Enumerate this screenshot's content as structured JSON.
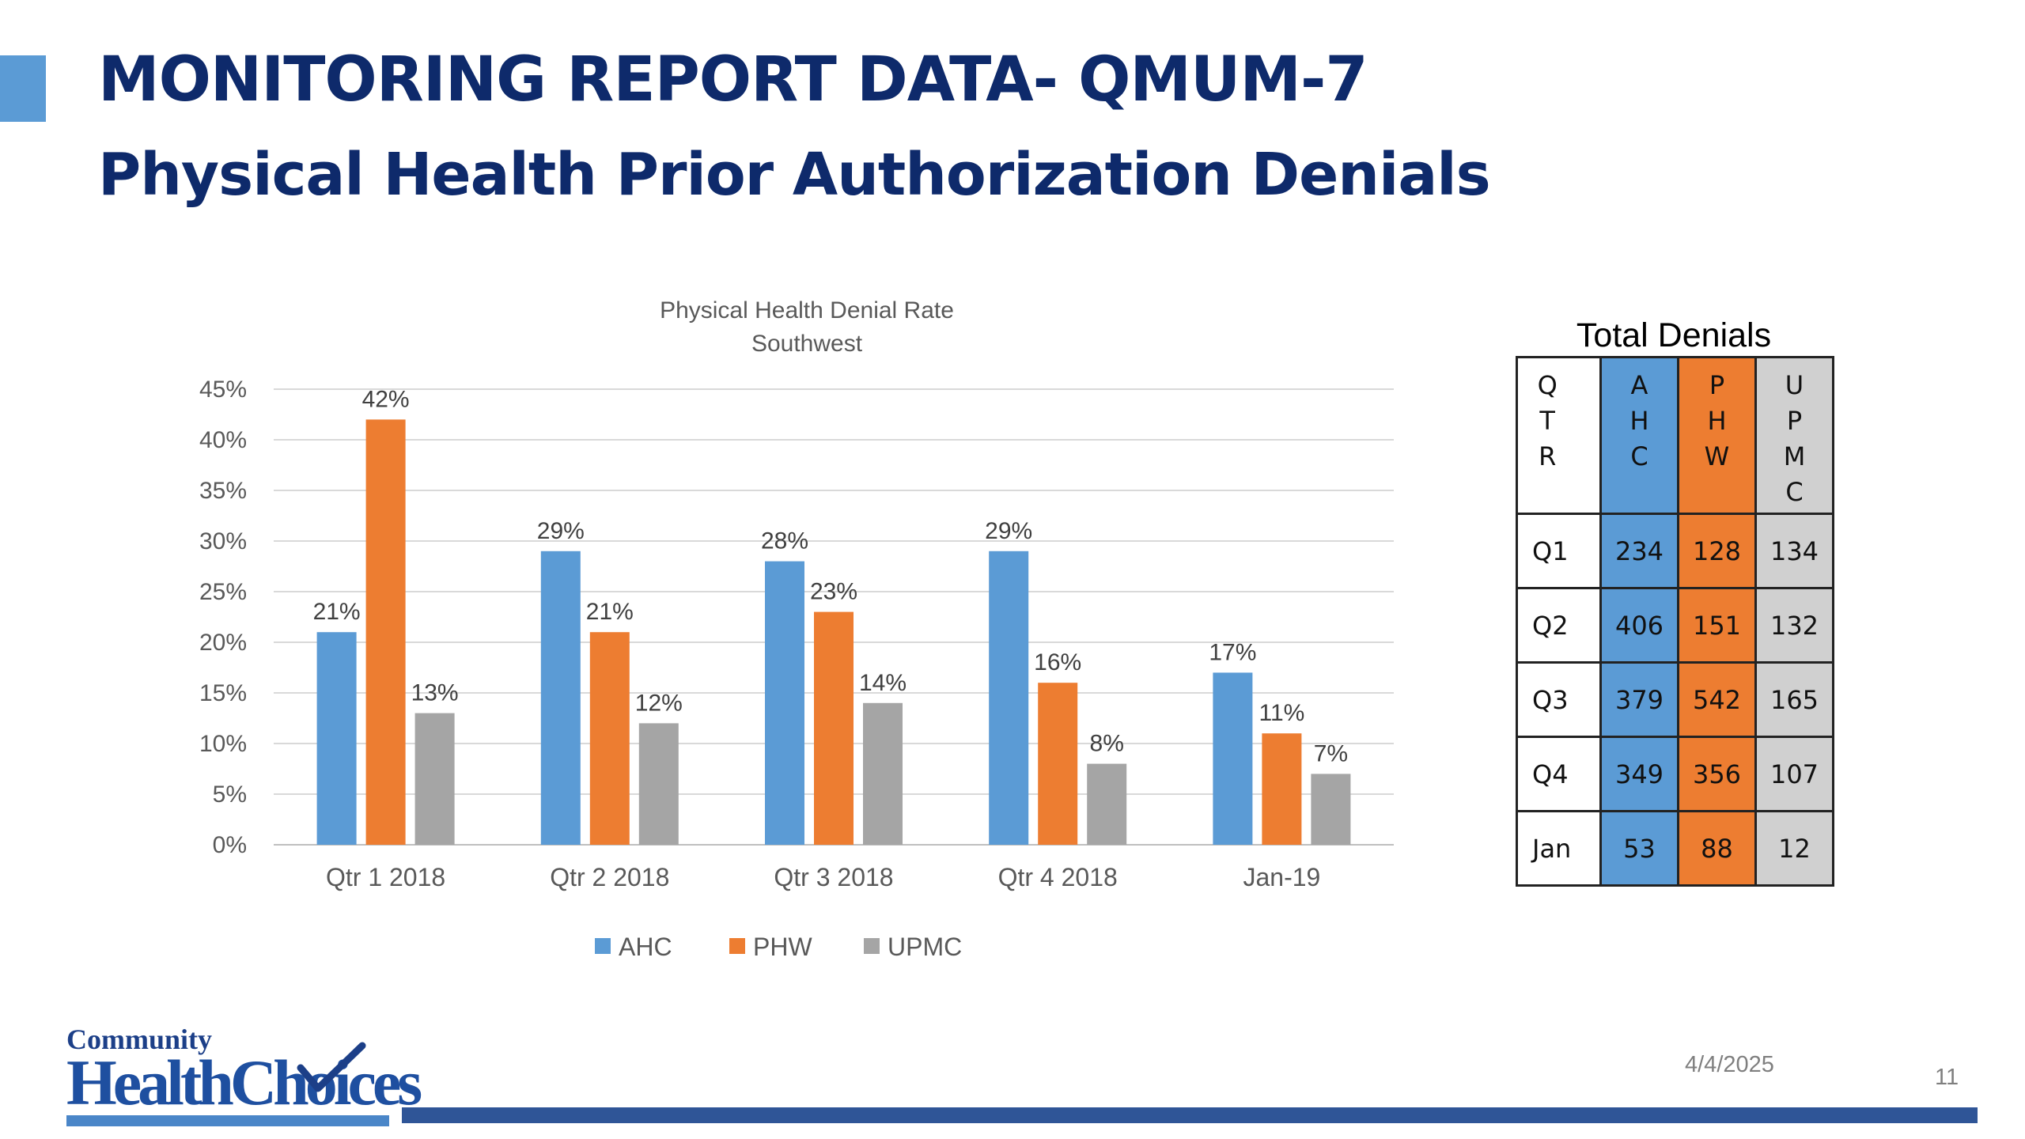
{
  "header": {
    "title_line1": "MONITORING REPORT DATA- QMUM-7",
    "title_line2": "Physical Health Prior Authorization Denials"
  },
  "chart_data": {
    "type": "bar",
    "title": "Physical Health Denial Rate",
    "subtitle": "Southwest",
    "categories": [
      "Qtr 1 2018",
      "Qtr 2 2018",
      "Qtr 3 2018",
      "Qtr 4 2018",
      "Jan-19"
    ],
    "series": [
      {
        "name": "AHC",
        "color": "#5b9bd5",
        "values": [
          21,
          29,
          28,
          29,
          17
        ],
        "labels": [
          "21%",
          "29%",
          "28%",
          "29%",
          "17%"
        ]
      },
      {
        "name": "PHW",
        "color": "#ed7d31",
        "values": [
          42,
          21,
          23,
          16,
          11
        ],
        "labels": [
          "42%",
          "21%",
          "23%",
          "16%",
          "11%"
        ]
      },
      {
        "name": "UPMC",
        "color": "#a5a5a5",
        "values": [
          13,
          12,
          14,
          8,
          7
        ],
        "labels": [
          "13%",
          "12%",
          "14%",
          "8%",
          "7%"
        ]
      }
    ],
    "yticks": [
      "0%",
      "5%",
      "10%",
      "15%",
      "20%",
      "25%",
      "30%",
      "35%",
      "40%",
      "45%"
    ],
    "ylim": [
      0,
      45
    ],
    "grid": true,
    "legend": "bottom"
  },
  "denials_table": {
    "title": "Total Denials",
    "headers": [
      "QTR",
      "AHC",
      "PHW",
      "UPMC"
    ],
    "rows": [
      [
        "Q1",
        "234",
        "128",
        "134"
      ],
      [
        "Q2",
        "406",
        "151",
        "132"
      ],
      [
        "Q3",
        "379",
        "542",
        "165"
      ],
      [
        "Q4",
        "349",
        "356",
        "107"
      ],
      [
        "Jan",
        "53",
        "88",
        "12"
      ]
    ]
  },
  "logo": {
    "line1": "Community",
    "line2": "HealthChoices"
  },
  "footer": {
    "date": "4/4/2025",
    "page_number": "11"
  }
}
